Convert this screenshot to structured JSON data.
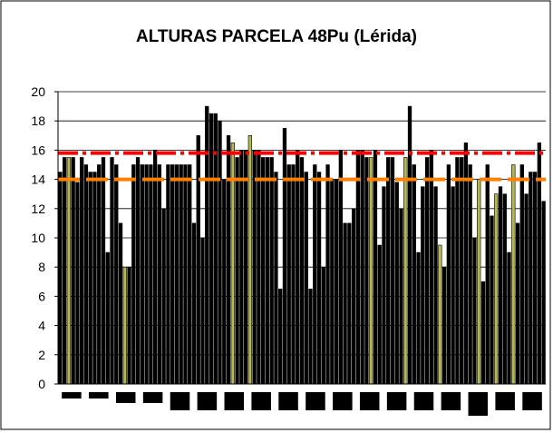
{
  "chart_data": {
    "type": "bar",
    "title": "ALTURAS PARCELA 48Pu (Lérida)",
    "xlabel": "",
    "ylabel": "",
    "ylim": [
      0,
      20
    ],
    "yticks": [
      0,
      2,
      4,
      6,
      8,
      10,
      12,
      14,
      16,
      18,
      20
    ],
    "grid": "horizontal",
    "legend": "none",
    "values": [
      14.5,
      15.5,
      15.5,
      15.5,
      13.8,
      15.5,
      15,
      14.5,
      14.5,
      15,
      15.5,
      9,
      15.5,
      15,
      11,
      8,
      8,
      15,
      15.5,
      15,
      15,
      15,
      16,
      15,
      12,
      15,
      15,
      15,
      15,
      15,
      15,
      11,
      17,
      10,
      19,
      18.5,
      18.5,
      18,
      14,
      17,
      16.5,
      15.5,
      16,
      16,
      17,
      16,
      16,
      15.5,
      15.5,
      15.5,
      14.5,
      6.5,
      17.5,
      15,
      15,
      16,
      15.5,
      14.5,
      6.5,
      15,
      14.5,
      8,
      15,
      14,
      14,
      16,
      11,
      11,
      12,
      16,
      16,
      15.5,
      15.5,
      16,
      9.5,
      13.5,
      15.5,
      15.5,
      13.8,
      12,
      15.5,
      19,
      15,
      9,
      13.5,
      15.5,
      16,
      13.5,
      9.5,
      8,
      15,
      13.5,
      15.5,
      15.5,
      16.5,
      15,
      10,
      14,
      7,
      15,
      11.5,
      13,
      13.5,
      13,
      9,
      15,
      11,
      15,
      13,
      14.5,
      14.5,
      16.5,
      12.5
    ],
    "series_colors": {
      "dark": "#000000",
      "olive": "#b7b753"
    },
    "olive_bar_indices": [
      2,
      15,
      40,
      44,
      72,
      80,
      88,
      97,
      101,
      105
    ],
    "reference_lines": [
      {
        "value": 15.8,
        "color": "#ff0000",
        "style": "dash-dot"
      },
      {
        "value": 14,
        "color": "#ff7f00",
        "style": "dashed"
      }
    ]
  }
}
